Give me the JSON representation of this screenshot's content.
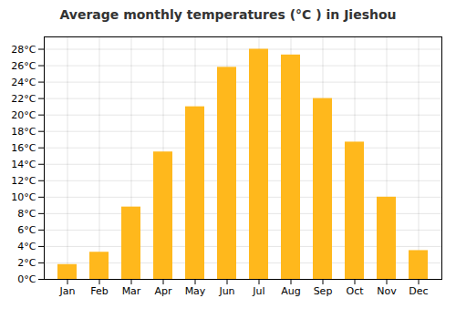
{
  "chart_data": {
    "type": "bar",
    "title": "Average monthly temperatures (°C ) in Jieshou",
    "categories": [
      "Jan",
      "Feb",
      "Mar",
      "Apr",
      "May",
      "Jun",
      "Jul",
      "Aug",
      "Sep",
      "Oct",
      "Nov",
      "Dec"
    ],
    "values": [
      1.8,
      3.3,
      8.8,
      15.5,
      21.0,
      25.8,
      28.0,
      27.3,
      22.0,
      16.7,
      10.0,
      3.5
    ],
    "color": "#FFB81C",
    "ylim": [
      0,
      29.5
    ],
    "yticks": [
      {
        "value": 0,
        "label": "0°C"
      },
      {
        "value": 2,
        "label": "2°C"
      },
      {
        "value": 4,
        "label": "4°C"
      },
      {
        "value": 6,
        "label": "6°C"
      },
      {
        "value": 8,
        "label": "8°C"
      },
      {
        "value": 10,
        "label": "10°C"
      },
      {
        "value": 12,
        "label": "12°C"
      },
      {
        "value": 14,
        "label": "14°C"
      },
      {
        "value": 16,
        "label": "16°C"
      },
      {
        "value": 18,
        "label": "18°C"
      },
      {
        "value": 20,
        "label": "20°C"
      },
      {
        "value": 22,
        "label": "22°C"
      },
      {
        "value": 24,
        "label": "24°C"
      },
      {
        "value": 26,
        "label": "26°C"
      },
      {
        "value": 28,
        "label": "28°C"
      }
    ],
    "grid": true
  }
}
